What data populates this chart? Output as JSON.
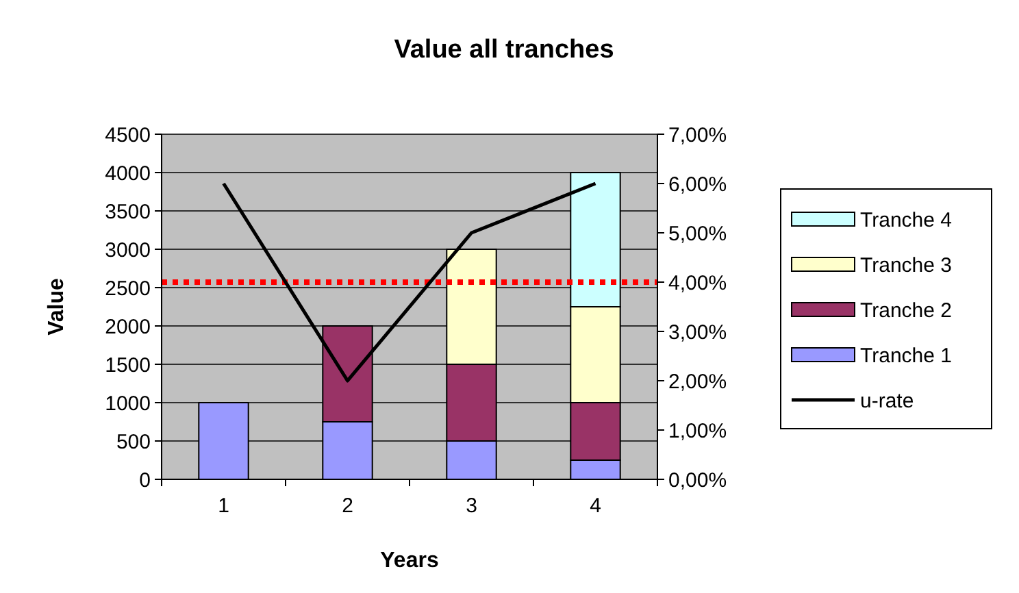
{
  "chart_data": {
    "type": "bar",
    "title": "Value all tranches",
    "xlabel": "Years",
    "ylabel": "Value",
    "categories": [
      "1",
      "2",
      "3",
      "4"
    ],
    "stacked": true,
    "series": [
      {
        "name": "Tranche 1",
        "color": "#9999ff",
        "values": [
          1000,
          750,
          500,
          250
        ]
      },
      {
        "name": "Tranche 2",
        "color": "#993366",
        "values": [
          0,
          1250,
          1000,
          750
        ]
      },
      {
        "name": "Tranche 3",
        "color": "#ffffcc",
        "values": [
          0,
          0,
          1500,
          1250
        ]
      },
      {
        "name": "Tranche 4",
        "color": "#ccffff",
        "values": [
          0,
          0,
          0,
          1750
        ]
      },
      {
        "name": "u-rate",
        "type": "line",
        "axis": "y2",
        "color": "#000000",
        "values": [
          6,
          2,
          5,
          6
        ]
      }
    ],
    "ylim": [
      0,
      4500
    ],
    "yticks": [
      0,
      500,
      1000,
      1500,
      2000,
      2500,
      3000,
      3500,
      4000,
      4500
    ],
    "y2lim": [
      0,
      7
    ],
    "y2ticks": [
      {
        "value": 0,
        "label": "0,00%"
      },
      {
        "value": 1,
        "label": "1,00%"
      },
      {
        "value": 2,
        "label": "2,00%"
      },
      {
        "value": 3,
        "label": "3,00%"
      },
      {
        "value": 4,
        "label": "4,00%"
      },
      {
        "value": 5,
        "label": "5,00%"
      },
      {
        "value": 6,
        "label": "6,00%"
      },
      {
        "value": 7,
        "label": "7,00%"
      }
    ],
    "ref_lines": [
      {
        "axis": "y2",
        "value": 4,
        "color": "#ff0000",
        "line_style": "dotted"
      }
    ],
    "grid": "y",
    "legend": "right"
  }
}
